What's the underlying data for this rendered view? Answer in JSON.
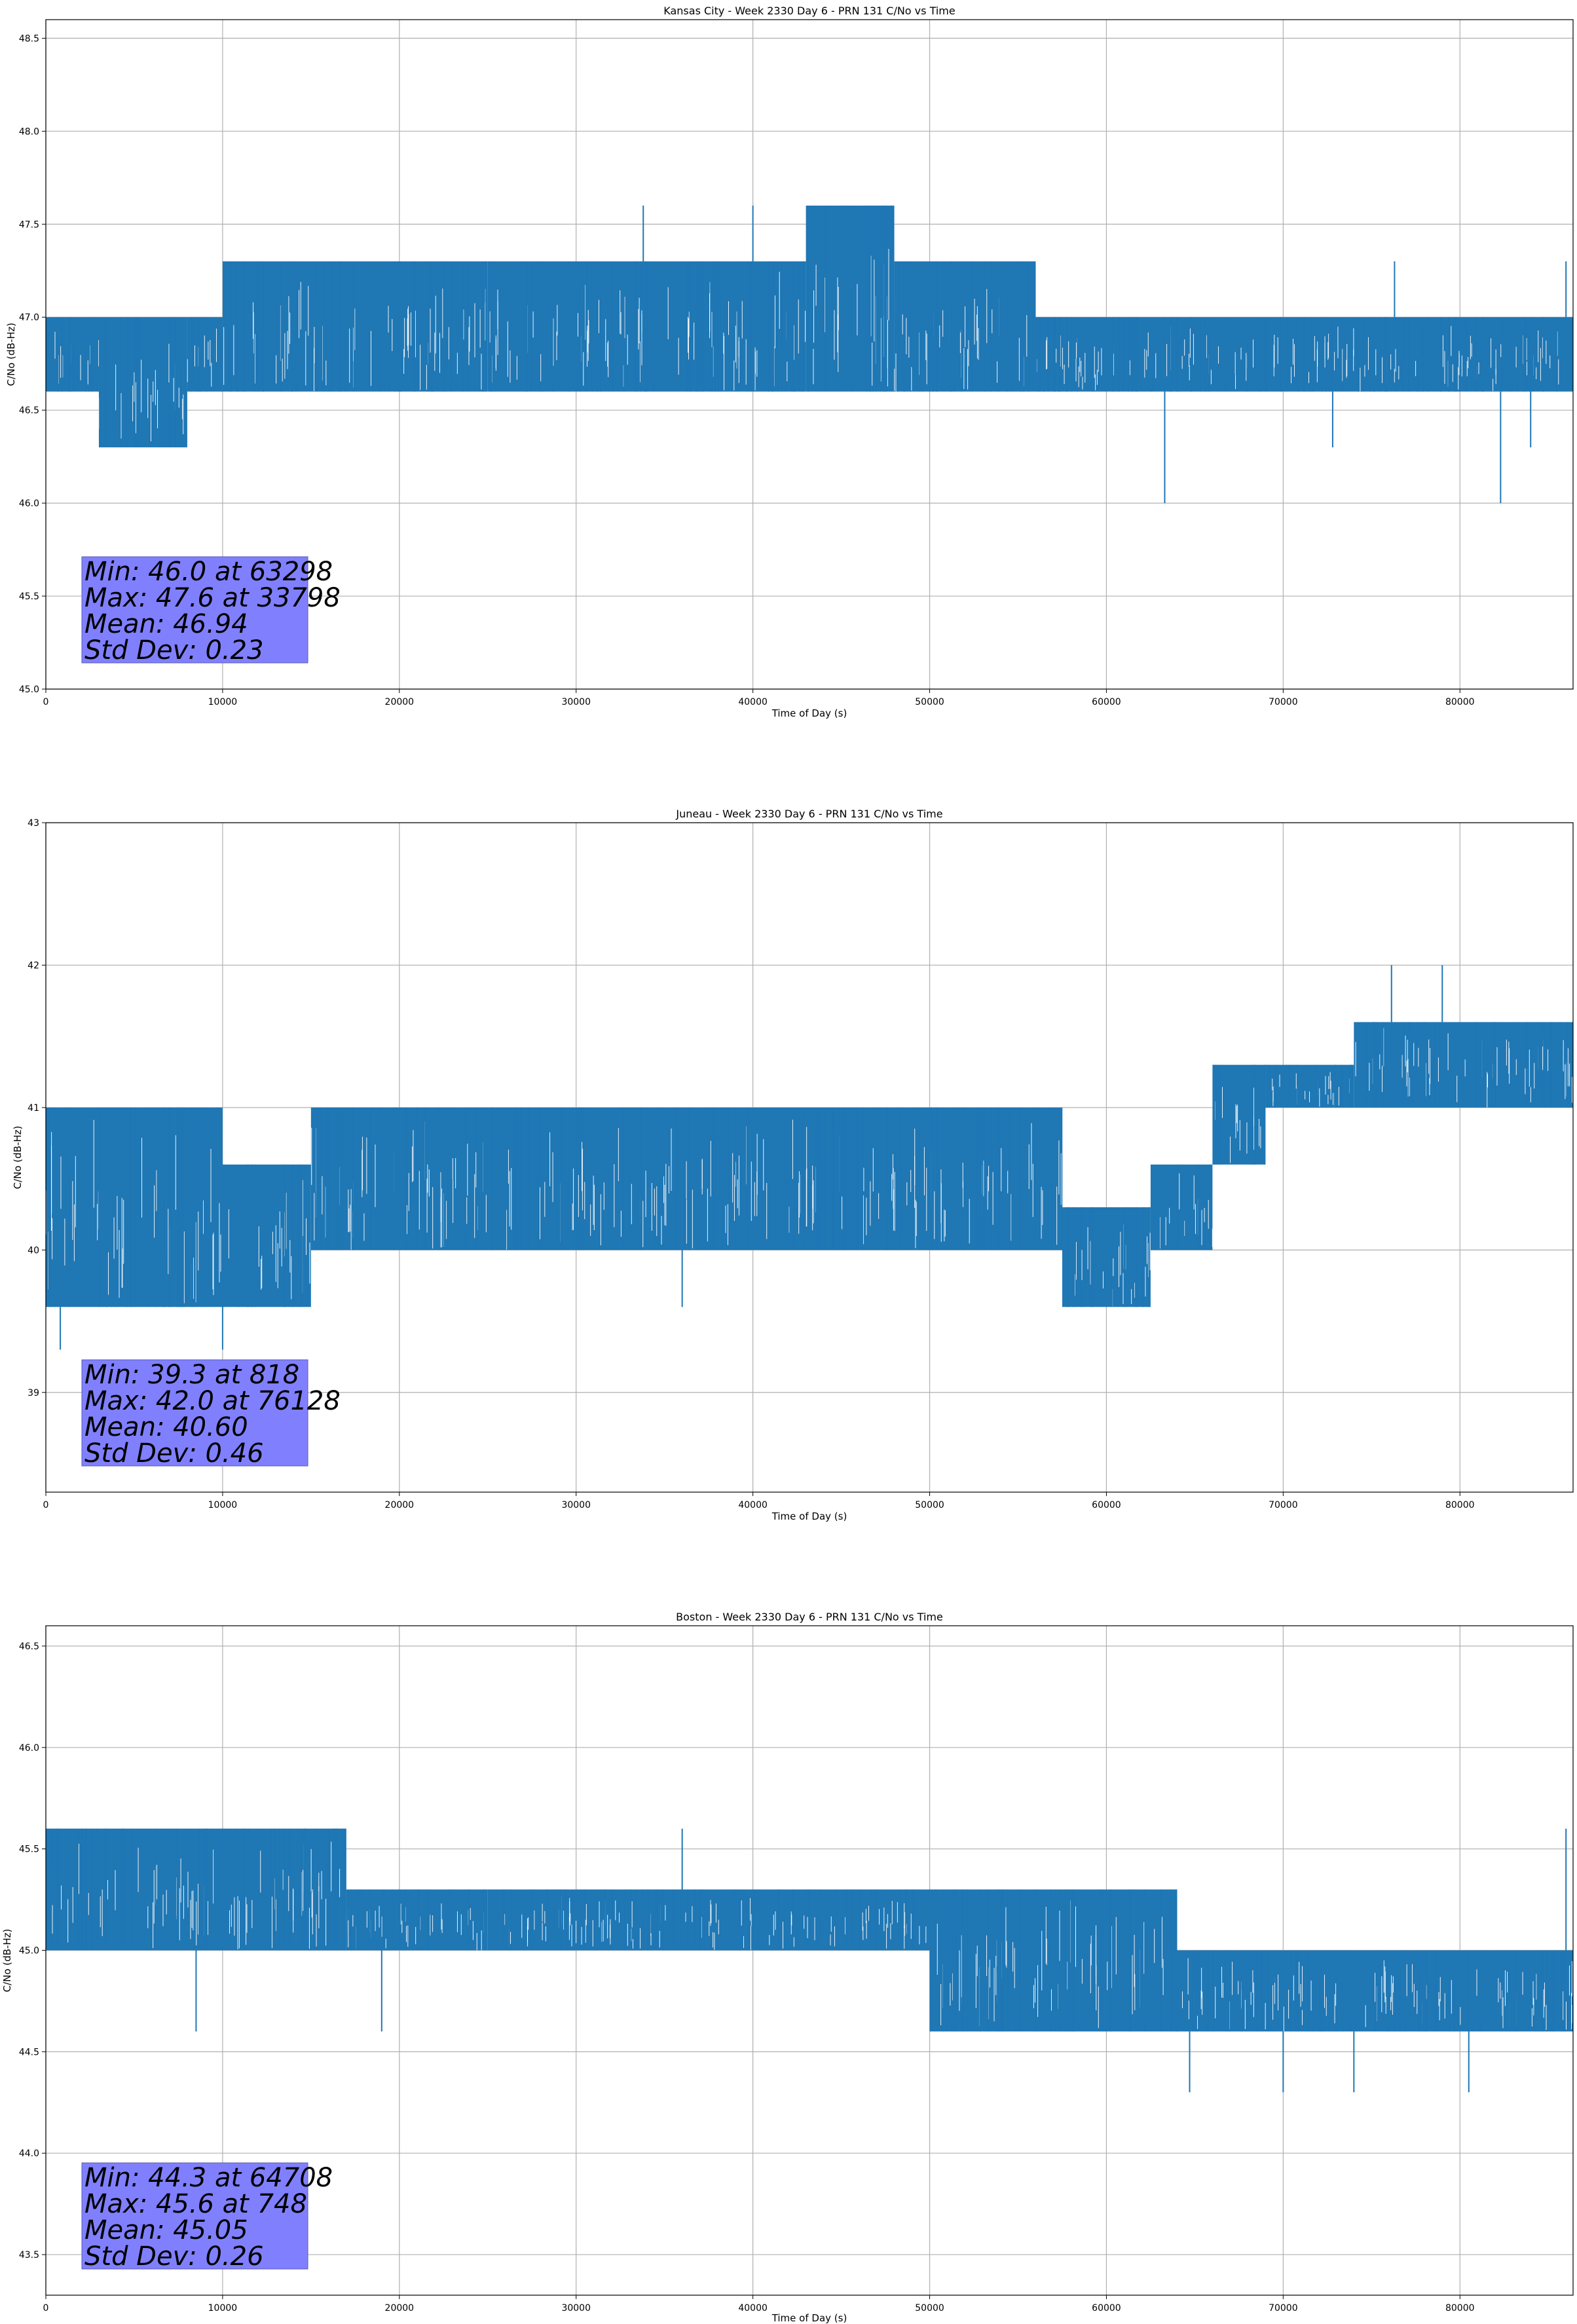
{
  "chart_data": [
    {
      "type": "line",
      "title": "Kansas City - Week 2330 Day 6 - PRN 131 C/No vs Time",
      "xlabel": "Time of Day (s)",
      "ylabel": "C/No (dB-Hz)",
      "xlim": [
        0,
        86400
      ],
      "ylim": [
        45.0,
        48.6
      ],
      "xticks": [
        "0",
        "10000",
        "20000",
        "30000",
        "40000",
        "50000",
        "60000",
        "70000",
        "80000"
      ],
      "yticks": [
        "45.0",
        "45.5",
        "46.0",
        "46.5",
        "47.0",
        "47.5",
        "48.0",
        "48.5"
      ],
      "grid": true,
      "series_color": "#1f77b4",
      "segments": [
        {
          "x0": 0,
          "x1": 3000,
          "lo": 46.6,
          "hi": 47.0
        },
        {
          "x0": 3000,
          "x1": 8000,
          "lo": 46.3,
          "hi": 47.0
        },
        {
          "x0": 8000,
          "x1": 10000,
          "lo": 46.6,
          "hi": 47.0
        },
        {
          "x0": 10000,
          "x1": 25000,
          "lo": 46.6,
          "hi": 47.3
        },
        {
          "x0": 25000,
          "x1": 43000,
          "lo": 46.6,
          "hi": 47.3
        },
        {
          "x0": 43000,
          "x1": 48000,
          "lo": 46.6,
          "hi": 47.6
        },
        {
          "x0": 48000,
          "x1": 56000,
          "lo": 46.6,
          "hi": 47.3
        },
        {
          "x0": 56000,
          "x1": 86400,
          "lo": 46.6,
          "hi": 47.0
        }
      ],
      "spikes": [
        {
          "x": 33798,
          "y": 47.6
        },
        {
          "x": 40000,
          "y": 47.6
        },
        {
          "x": 63298,
          "y": 46.0
        },
        {
          "x": 72800,
          "y": 46.3
        },
        {
          "x": 76300,
          "y": 47.3
        },
        {
          "x": 82300,
          "y": 46.0
        },
        {
          "x": 84000,
          "y": 46.3
        },
        {
          "x": 86000,
          "y": 47.3
        }
      ],
      "stats": [
        "Min: 46.0 at 63298",
        "Max: 47.6 at 33798",
        "Mean: 46.94",
        "Std Dev: 0.23"
      ]
    },
    {
      "type": "line",
      "title": "Juneau - Week 2330 Day 6 - PRN 131 C/No vs Time",
      "xlabel": "Time of Day (s)",
      "ylabel": "C/No (dB-Hz)",
      "xlim": [
        0,
        86400
      ],
      "ylim": [
        38.3,
        43.0
      ],
      "xticks": [
        "0",
        "10000",
        "20000",
        "30000",
        "40000",
        "50000",
        "60000",
        "70000",
        "80000"
      ],
      "yticks": [
        "39",
        "40",
        "41",
        "42",
        "43"
      ],
      "grid": true,
      "series_color": "#1f77b4",
      "segments": [
        {
          "x0": 0,
          "x1": 10000,
          "lo": 39.6,
          "hi": 41.0
        },
        {
          "x0": 10000,
          "x1": 15000,
          "lo": 39.6,
          "hi": 40.6
        },
        {
          "x0": 15000,
          "x1": 36000,
          "lo": 40.0,
          "hi": 41.0
        },
        {
          "x0": 36000,
          "x1": 50000,
          "lo": 40.0,
          "hi": 41.0
        },
        {
          "x0": 50000,
          "x1": 57500,
          "lo": 40.0,
          "hi": 41.0
        },
        {
          "x0": 57500,
          "x1": 62500,
          "lo": 39.6,
          "hi": 40.3
        },
        {
          "x0": 62500,
          "x1": 66000,
          "lo": 40.0,
          "hi": 40.6
        },
        {
          "x0": 66000,
          "x1": 69000,
          "lo": 40.6,
          "hi": 41.3
        },
        {
          "x0": 69000,
          "x1": 74000,
          "lo": 41.0,
          "hi": 41.3
        },
        {
          "x0": 74000,
          "x1": 86400,
          "lo": 41.0,
          "hi": 41.6
        }
      ],
      "spikes": [
        {
          "x": 818,
          "y": 39.3
        },
        {
          "x": 10000,
          "y": 39.3
        },
        {
          "x": 36000,
          "y": 39.6
        },
        {
          "x": 76128,
          "y": 42.0
        },
        {
          "x": 79000,
          "y": 42.0
        }
      ],
      "stats": [
        "Min: 39.3 at 818",
        "Max: 42.0 at 76128",
        "Mean: 40.60",
        "Std Dev: 0.46"
      ]
    },
    {
      "type": "line",
      "title": "Boston - Week 2330 Day 6 - PRN 131 C/No vs Time",
      "xlabel": "Time of Day (s)",
      "ylabel": "C/No (dB-Hz)",
      "xlim": [
        0,
        86400
      ],
      "ylim": [
        43.3,
        46.6
      ],
      "xticks": [
        "0",
        "10000",
        "20000",
        "30000",
        "40000",
        "50000",
        "60000",
        "70000",
        "80000"
      ],
      "yticks": [
        "43.5",
        "44.0",
        "44.5",
        "45.0",
        "45.5",
        "46.0",
        "46.5"
      ],
      "grid": true,
      "series_color": "#1f77b4",
      "segments": [
        {
          "x0": 0,
          "x1": 17000,
          "lo": 45.0,
          "hi": 45.6
        },
        {
          "x0": 17000,
          "x1": 25000,
          "lo": 45.0,
          "hi": 45.3
        },
        {
          "x0": 25000,
          "x1": 50000,
          "lo": 45.0,
          "hi": 45.3
        },
        {
          "x0": 50000,
          "x1": 64000,
          "lo": 44.6,
          "hi": 45.3
        },
        {
          "x0": 64000,
          "x1": 86400,
          "lo": 44.6,
          "hi": 45.0
        }
      ],
      "spikes": [
        {
          "x": 748,
          "y": 45.6
        },
        {
          "x": 8500,
          "y": 44.6
        },
        {
          "x": 19000,
          "y": 44.6
        },
        {
          "x": 36000,
          "y": 45.6
        },
        {
          "x": 64708,
          "y": 44.3
        },
        {
          "x": 70000,
          "y": 44.3
        },
        {
          "x": 74000,
          "y": 44.3
        },
        {
          "x": 80500,
          "y": 44.3
        },
        {
          "x": 86000,
          "y": 45.6
        }
      ],
      "stats": [
        "Min: 44.3 at 64708",
        "Max: 45.6 at 748",
        "Mean: 45.05",
        "Std Dev: 0.26"
      ]
    }
  ]
}
